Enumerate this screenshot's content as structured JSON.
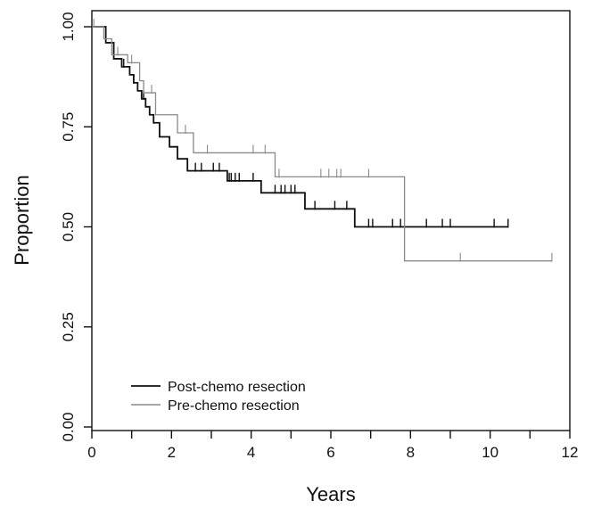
{
  "chart_data": {
    "type": "line",
    "step": true,
    "title": "",
    "xlabel": "Years",
    "ylabel": "Proportion",
    "xlim": [
      0,
      12
    ],
    "ylim": [
      0,
      1
    ],
    "x_ticks": [
      0,
      2,
      4,
      6,
      8,
      10,
      12
    ],
    "x_tick_labels": [
      "0",
      "2",
      "4",
      "6",
      "8",
      "10",
      "12"
    ],
    "y_ticks": [
      0,
      0.25,
      0.5,
      0.75,
      1
    ],
    "y_tick_labels": [
      "0.00",
      "0.25",
      "0.50",
      "0.75",
      "1.00"
    ],
    "grid": false,
    "legend_position": "bottom-left",
    "series": [
      {
        "name": "Post-chemo resection",
        "color": "#111111",
        "steps": [
          [
            0,
            1.0
          ],
          [
            0.35,
            0.96
          ],
          [
            0.55,
            0.92
          ],
          [
            0.75,
            0.9
          ],
          [
            0.95,
            0.88
          ],
          [
            1.05,
            0.86
          ],
          [
            1.15,
            0.84
          ],
          [
            1.25,
            0.82
          ],
          [
            1.35,
            0.8
          ],
          [
            1.45,
            0.78
          ],
          [
            1.55,
            0.76
          ],
          [
            1.7,
            0.725
          ],
          [
            1.95,
            0.7
          ],
          [
            2.15,
            0.67
          ],
          [
            2.4,
            0.64
          ],
          [
            3.4,
            0.615
          ],
          [
            4.25,
            0.585
          ],
          [
            5.35,
            0.545
          ],
          [
            6.6,
            0.5
          ],
          [
            10.45,
            0.5
          ]
        ],
        "censor_x": [
          0.8,
          1.05,
          1.3,
          1.55,
          2.6,
          2.75,
          3.05,
          3.2,
          3.45,
          3.5,
          3.6,
          3.7,
          4.05,
          4.6,
          4.75,
          4.85,
          5.0,
          5.1,
          5.6,
          6.1,
          6.4,
          6.95,
          7.05,
          7.55,
          7.75,
          8.4,
          8.8,
          9.0,
          10.1,
          10.45
        ]
      },
      {
        "name": "Pre-chemo resection",
        "color": "#8a8a8a",
        "steps": [
          [
            0,
            1.0
          ],
          [
            0.3,
            0.97
          ],
          [
            0.5,
            0.93
          ],
          [
            0.9,
            0.91
          ],
          [
            1.2,
            0.865
          ],
          [
            1.3,
            0.835
          ],
          [
            1.6,
            0.78
          ],
          [
            2.15,
            0.735
          ],
          [
            2.55,
            0.685
          ],
          [
            4.6,
            0.625
          ],
          [
            7.85,
            0.415
          ],
          [
            11.55,
            0.415
          ]
        ],
        "censor_x": [
          0.05,
          0.65,
          1.0,
          1.5,
          2.35,
          2.9,
          4.05,
          4.35,
          4.7,
          5.75,
          5.95,
          6.15,
          6.25,
          6.95,
          9.25,
          11.55
        ]
      }
    ]
  }
}
